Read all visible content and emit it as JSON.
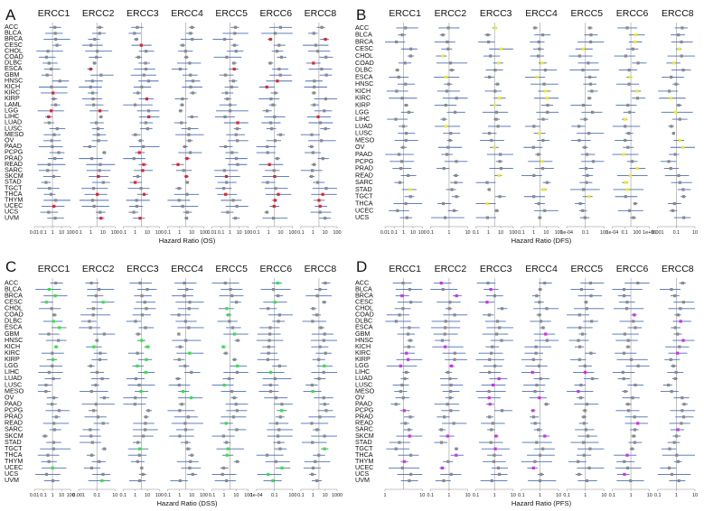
{
  "chart_data": [
    {
      "panel": "A",
      "type": "forest",
      "xlabel": "Hazard Ratio (OS)",
      "genes": [
        "ERCC1",
        "ERCC2",
        "ERCC3",
        "ERCC4",
        "ERCC5",
        "ERCC6",
        "ERCC8"
      ],
      "cancers": [
        "ACC",
        "BLCA",
        "BRCA",
        "CESC",
        "CHOL",
        "COAD",
        "DLBC",
        "ESCA",
        "GBM",
        "HNSC",
        "KICH",
        "KIRC",
        "KIRP",
        "LAML",
        "LGG",
        "LIHC",
        "LUAD",
        "LUSC",
        "MESO",
        "OV",
        "PAAD",
        "PCPG",
        "PRAD",
        "READ",
        "SARC",
        "SKCM",
        "STAD",
        "TGCT",
        "THCA",
        "THYM",
        "UCEC",
        "UCS",
        "UVM"
      ],
      "highlight_color": "#e8202a",
      "tick_labels": [
        [
          "0.01",
          "0.1",
          "1",
          "10",
          "100"
        ],
        [
          "0.1",
          "1",
          "10",
          "100"
        ],
        [
          "0.1",
          "1",
          "10",
          "100"
        ],
        [
          "0.1",
          "1",
          "10",
          "100"
        ],
        [
          "0.01",
          "0.1",
          "1",
          "10",
          "100"
        ],
        [
          "0.1",
          "1",
          "10",
          "100"
        ],
        [
          "0.1",
          "1",
          "10",
          "100"
        ]
      ]
    },
    {
      "panel": "B",
      "type": "forest",
      "xlabel": "Hazard Ratio (DFS)",
      "genes": [
        "ERCC1",
        "ERCC2",
        "ERCC3",
        "ERCC4",
        "ERCC5",
        "ERCC6",
        "ERCC8"
      ],
      "cancers": [
        "ACC",
        "BLCA",
        "BRCA",
        "CESC",
        "CHOL",
        "COAD",
        "DLBC",
        "ESCA",
        "HNSC",
        "KICH",
        "KIRC",
        "KIRP",
        "LGG",
        "LIHC",
        "LUAD",
        "LUSC",
        "MESO",
        "OV",
        "PAAD",
        "PCPG",
        "PRAD",
        "READ",
        "SARC",
        "STAD",
        "TGCT",
        "THCA",
        "UCEC",
        "UCS"
      ],
      "highlight_color": "#f0ec2a",
      "tick_labels": [
        [
          "0.01",
          "0.1",
          "1",
          "10",
          "100"
        ],
        [
          "0.1",
          "1",
          "10"
        ],
        [
          "0.1",
          "1",
          "10",
          "100"
        ],
        [
          "0.1",
          "1",
          "10",
          "100"
        ],
        [
          "1e-04",
          "0.1",
          "100"
        ],
        [
          "1e-04",
          "0.1",
          "100",
          "1e+06"
        ],
        [
          "0.001",
          "0.1",
          "10"
        ]
      ]
    },
    {
      "panel": "C",
      "type": "forest",
      "xlabel": "Hazard Ratio (DSS)",
      "genes": [
        "ERCC1",
        "ERCC2",
        "ERCC3",
        "ERCC4",
        "ERCC5",
        "ERCC6",
        "ERCC8"
      ],
      "cancers": [
        "ACC",
        "BLCA",
        "BRCA",
        "CESC",
        "CHOL",
        "COAD",
        "DLBC",
        "ESCA",
        "GBM",
        "HNSC",
        "KICH",
        "KIRC",
        "KIRP",
        "LGG",
        "LIHC",
        "LUAD",
        "LUSC",
        "MESO",
        "OV",
        "PAAD",
        "PCPG",
        "PRAD",
        "READ",
        "SARC",
        "SKCM",
        "STAD",
        "TGCT",
        "THCA",
        "THYM",
        "UCEC",
        "UCS",
        "UVM"
      ],
      "highlight_color": "#2ee83a",
      "tick_labels": [
        [
          "0.01",
          "0.1",
          "1",
          "10",
          "100"
        ],
        [
          "0.001",
          "0.1",
          "10"
        ],
        [
          "0.1",
          "1",
          "10",
          "100"
        ],
        [
          "0.1",
          "1",
          "10",
          "100"
        ],
        [
          "0.1",
          "1",
          "10",
          "100"
        ],
        [
          "1e-04",
          "0.1",
          "100"
        ],
        [
          "0.1",
          "1",
          "10",
          "1000"
        ]
      ]
    },
    {
      "panel": "D",
      "type": "forest",
      "xlabel": "Hazard Ratio (PFS)",
      "genes": [
        "ERCC1",
        "ERCC2",
        "ERCC3",
        "ERCC4",
        "ERCC5",
        "ERCC6",
        "ERCC8"
      ],
      "cancers": [
        "ACC",
        "BLCA",
        "BRCA",
        "CESC",
        "CHOL",
        "COAD",
        "DLBC",
        "ESCA",
        "GBM",
        "HNSC",
        "KICH",
        "KIRC",
        "KIRP",
        "LGG",
        "LIHC",
        "LUAD",
        "LUSC",
        "MESO",
        "OV",
        "PAAD",
        "PCPG",
        "PRAD",
        "READ",
        "SARC",
        "SKCM",
        "STAD",
        "TGCT",
        "THCA",
        "THYM",
        "UCEC",
        "UCS",
        "UVM"
      ],
      "highlight_color": "#d42ee8",
      "tick_labels": [
        [
          "1",
          "10"
        ],
        [
          "0.1",
          "1",
          "10"
        ],
        [
          "0.1",
          "1",
          "10"
        ],
        [
          "0.1",
          "1",
          "10"
        ],
        [
          "0.1",
          "1",
          "10"
        ],
        [
          "0.1",
          "1",
          "10"
        ],
        [
          "0.1",
          "1",
          "10"
        ]
      ]
    }
  ],
  "colors": {
    "whisker": "#4a6fb5",
    "point": "#8a8a8a",
    "reference_line": "#9a9a9a",
    "axis": "#8c8c8c"
  }
}
